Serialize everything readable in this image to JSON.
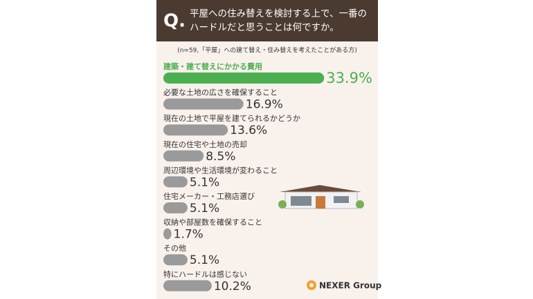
{
  "chart_data": {
    "type": "bar",
    "orientation": "horizontal",
    "question_mark": "Q.",
    "title": [
      "平屋への住み替えを検討する上で、一番の",
      "ハードルだと思うことは何ですか。"
    ],
    "subtitle": "(n=59,「平屋」への建て替え・住み替えを考えたことがある方)",
    "categories": [
      "建築・建て替えにかかる費用",
      "必要な土地の広さを確保すること",
      "現在の土地で平屋を建てられるかどうか",
      "現在の住宅や土地の売却",
      "周辺環境や生活環境が変わること",
      "住宅メーカー・工務店選び",
      "収納や部屋数を確保すること",
      "その他",
      "特にハードルは感じない"
    ],
    "values": [
      33.9,
      16.9,
      13.6,
      8.5,
      5.1,
      5.1,
      1.7,
      5.1,
      10.2
    ],
    "value_labels": [
      "33.9%",
      "16.9%",
      "13.6%",
      "8.5%",
      "5.1%",
      "5.1%",
      "1.7%",
      "5.1%",
      "10.2%"
    ],
    "colors": [
      "#4caf50",
      "#9a9a9a",
      "#9a9a9a",
      "#9a9a9a",
      "#9a9a9a",
      "#9a9a9a",
      "#9a9a9a",
      "#9a9a9a",
      "#9a9a9a"
    ],
    "brand": "NEXER Group"
  }
}
